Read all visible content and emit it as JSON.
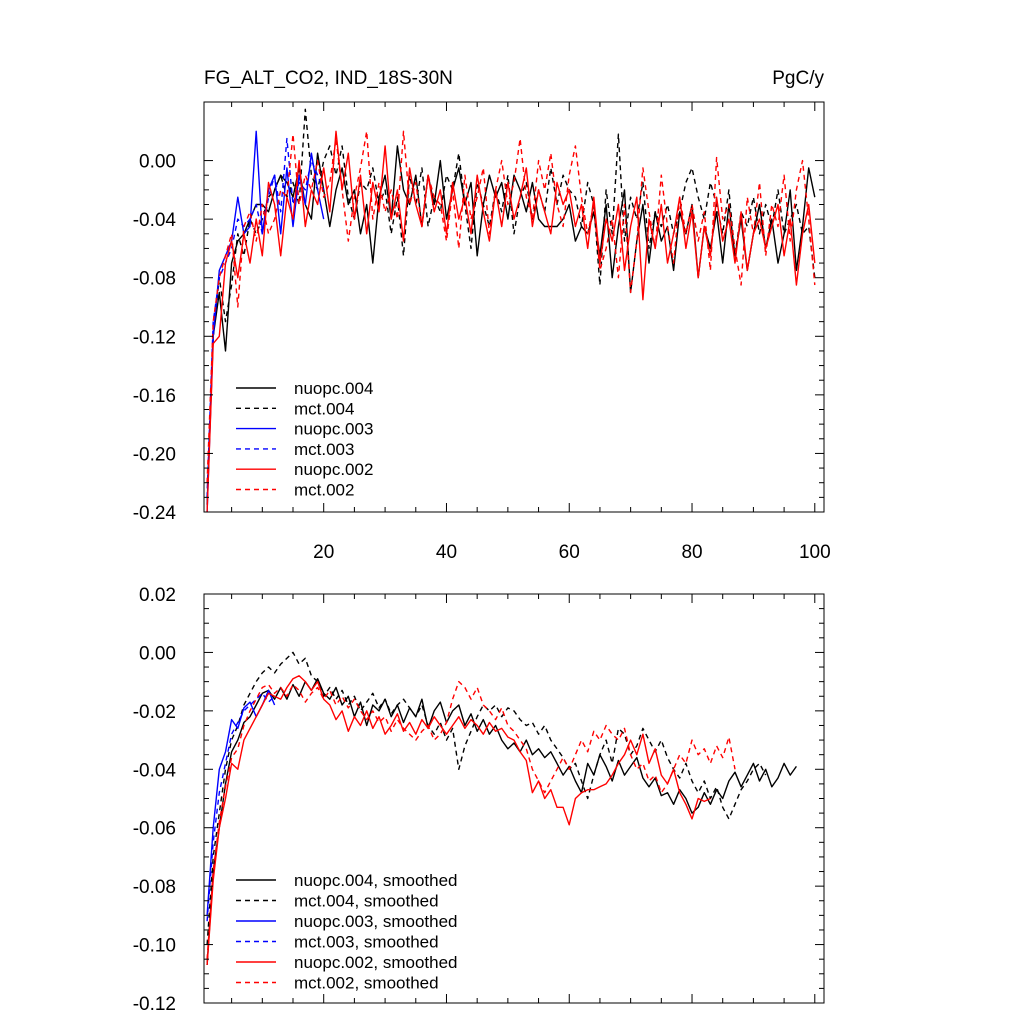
{
  "colors": {
    "black": "#000000",
    "blue": "#0000ff",
    "red": "#ff0000"
  },
  "chart_data": [
    {
      "type": "line",
      "title": "FG_ALT_CO2, IND_18S-30N",
      "units": "PgC/y",
      "xlabel": "",
      "ylabel": "",
      "xlim": [
        0.5,
        101.5
      ],
      "ylim": [
        -0.24,
        0.04
      ],
      "xticks": [
        20,
        40,
        60,
        80,
        100
      ],
      "yticks": [
        0.0,
        -0.04,
        -0.08,
        -0.12,
        -0.16,
        -0.2,
        -0.24
      ],
      "ytick_labels": [
        "0.00",
        "-0.04",
        "-0.08",
        "-0.12",
        "-0.16",
        "-0.20",
        "-0.24"
      ],
      "legend_position": "bottom-left",
      "series": [
        {
          "name": "nuopc.004",
          "color": "#000000",
          "dash": false,
          "values": [
            -0.235,
            -0.12,
            -0.09,
            -0.13,
            -0.07,
            -0.055,
            -0.05,
            -0.04,
            -0.03,
            -0.03,
            -0.035,
            -0.02,
            -0.01,
            -0.015,
            -0.025,
            -0.005,
            -0.03,
            -0.04,
            0.005,
            -0.02,
            -0.045,
            -0.02,
            -0.005,
            -0.03,
            -0.02,
            -0.05,
            -0.03,
            -0.07,
            -0.025,
            -0.01,
            -0.04,
            0.01,
            -0.02,
            -0.03,
            -0.01,
            -0.045,
            -0.01,
            -0.03,
            0.0,
            -0.04,
            -0.02,
            -0.005,
            -0.03,
            -0.015,
            -0.065,
            -0.03,
            -0.01,
            -0.025,
            -0.015,
            -0.04,
            -0.01,
            -0.02,
            -0.035,
            -0.015,
            -0.04,
            -0.045,
            -0.045,
            -0.045,
            -0.04,
            -0.03,
            -0.055,
            -0.045,
            -0.05,
            -0.035,
            -0.065,
            -0.03,
            -0.08,
            -0.045,
            -0.02,
            -0.09,
            -0.055,
            -0.03,
            -0.07,
            -0.035,
            -0.055,
            -0.045,
            -0.075,
            -0.035,
            -0.05,
            -0.03,
            -0.08,
            -0.045,
            -0.06,
            -0.035,
            -0.07,
            -0.03,
            -0.065,
            -0.04,
            -0.075,
            -0.05,
            -0.03,
            -0.06,
            -0.04,
            -0.07,
            -0.05,
            -0.02,
            -0.075,
            -0.045,
            -0.005,
            -0.025
          ]
        },
        {
          "name": "mct.004",
          "color": "#000000",
          "dash": true,
          "values": [
            -0.23,
            -0.12,
            -0.08,
            -0.11,
            -0.085,
            -0.05,
            -0.065,
            -0.04,
            -0.05,
            -0.04,
            -0.025,
            -0.02,
            -0.01,
            -0.025,
            -0.015,
            -0.03,
            0.035,
            -0.01,
            -0.02,
            0.0,
            0.01,
            -0.01,
            0.01,
            -0.025,
            -0.04,
            -0.015,
            -0.02,
            -0.005,
            -0.03,
            -0.02,
            -0.05,
            -0.025,
            -0.065,
            -0.01,
            -0.03,
            -0.005,
            -0.045,
            -0.025,
            -0.035,
            -0.01,
            -0.02,
            0.005,
            -0.03,
            -0.06,
            -0.015,
            -0.03,
            -0.045,
            -0.02,
            -0.035,
            -0.01,
            -0.05,
            -0.025,
            -0.015,
            -0.04,
            -0.02,
            -0.035,
            -0.005,
            -0.03,
            -0.01,
            -0.02,
            -0.025,
            -0.045,
            -0.015,
            -0.03,
            -0.085,
            -0.02,
            -0.05,
            0.018,
            -0.055,
            -0.025,
            -0.04,
            -0.015,
            -0.06,
            -0.035,
            -0.045,
            -0.03,
            -0.05,
            -0.035,
            -0.015,
            -0.005,
            -0.025,
            -0.04,
            -0.015,
            -0.03,
            -0.05,
            -0.02,
            -0.065,
            -0.035,
            -0.045,
            -0.025,
            -0.05,
            -0.03,
            -0.045,
            -0.02,
            -0.05,
            -0.04,
            -0.03,
            -0.05,
            -0.045,
            -0.08
          ]
        },
        {
          "name": "nuopc.003",
          "color": "#0000ff",
          "dash": false,
          "values": [
            -0.24,
            -0.12,
            -0.075,
            -0.065,
            -0.055,
            -0.025,
            -0.05,
            -0.045,
            0.02,
            -0.05,
            -0.02,
            -0.01,
            -0.05,
            -0.005,
            -0.045,
            -0.01,
            -0.03,
            0.005,
            -0.02,
            -0.04
          ]
        },
        {
          "name": "mct.003",
          "color": "#0000ff",
          "dash": true,
          "values": [
            -0.23,
            -0.11,
            -0.08,
            -0.07,
            -0.06,
            -0.04,
            -0.045,
            -0.04,
            -0.03,
            -0.05,
            -0.025,
            -0.01,
            -0.035,
            0.015,
            -0.03,
            -0.015,
            -0.02,
            0.0,
            -0.01,
            -0.02
          ]
        },
        {
          "name": "nuopc.002",
          "color": "#ff0000",
          "dash": false,
          "values": [
            -0.24,
            -0.125,
            -0.12,
            -0.07,
            -0.055,
            -0.08,
            -0.05,
            -0.07,
            -0.04,
            -0.065,
            -0.015,
            -0.03,
            -0.065,
            -0.025,
            -0.04,
            0.0,
            -0.045,
            -0.02,
            -0.03,
            -0.005,
            -0.035,
            0.02,
            -0.02,
            0.005,
            -0.04,
            -0.01,
            -0.05,
            -0.015,
            -0.035,
            0.01,
            -0.04,
            -0.02,
            -0.055,
            -0.005,
            -0.03,
            -0.045,
            -0.01,
            -0.035,
            -0.02,
            -0.05,
            -0.015,
            -0.04,
            -0.025,
            -0.05,
            -0.01,
            -0.035,
            -0.055,
            -0.02,
            -0.045,
            -0.015,
            -0.04,
            -0.025,
            -0.005,
            -0.045,
            -0.02,
            -0.035,
            -0.05,
            -0.015,
            -0.03,
            -0.02,
            -0.045,
            -0.03,
            -0.06,
            -0.025,
            -0.07,
            -0.04,
            -0.055,
            -0.03,
            -0.075,
            -0.045,
            -0.025,
            -0.095,
            -0.04,
            -0.06,
            -0.03,
            -0.07,
            -0.05,
            -0.025,
            -0.06,
            -0.035,
            -0.08,
            -0.045,
            -0.065,
            -0.025,
            -0.055,
            -0.04,
            -0.07,
            -0.035,
            -0.075,
            -0.05,
            -0.04,
            -0.06,
            -0.045,
            -0.03,
            -0.065,
            -0.04,
            -0.085,
            -0.05,
            -0.03,
            -0.07
          ]
        },
        {
          "name": "mct.002",
          "color": "#ff0000",
          "dash": true,
          "values": [
            -0.22,
            -0.11,
            -0.08,
            -0.065,
            -0.05,
            -0.1,
            -0.045,
            -0.035,
            -0.055,
            -0.03,
            -0.05,
            -0.04,
            -0.02,
            -0.025,
            0.018,
            -0.03,
            -0.01,
            -0.02,
            0.0,
            -0.025,
            -0.015,
            0.015,
            -0.02,
            -0.055,
            -0.025,
            -0.005,
            0.02,
            -0.04,
            -0.015,
            -0.035,
            -0.02,
            -0.04,
            0.02,
            -0.03,
            -0.015,
            -0.045,
            -0.01,
            -0.025,
            -0.03,
            -0.055,
            -0.02,
            -0.06,
            -0.01,
            -0.04,
            -0.025,
            -0.005,
            -0.05,
            -0.02,
            0.0,
            -0.03,
            -0.015,
            0.015,
            -0.025,
            -0.04,
            0.0,
            -0.02,
            0.005,
            -0.03,
            -0.045,
            -0.01,
            0.01,
            -0.025,
            -0.05,
            -0.03,
            -0.075,
            -0.06,
            -0.04,
            -0.08,
            -0.03,
            -0.09,
            -0.055,
            -0.005,
            -0.035,
            -0.06,
            -0.01,
            -0.045,
            -0.07,
            -0.025,
            -0.05,
            -0.03,
            -0.055,
            -0.035,
            -0.075,
            0.002,
            -0.04,
            -0.03,
            -0.06,
            -0.085,
            -0.025,
            -0.05,
            -0.015,
            -0.065,
            -0.03,
            -0.045,
            -0.01,
            -0.055,
            -0.02,
            0.0,
            -0.04,
            -0.085
          ]
        }
      ],
      "legend": [
        "nuopc.004",
        "mct.004",
        "nuopc.003",
        "mct.003",
        "nuopc.002",
        "mct.002"
      ]
    },
    {
      "type": "line",
      "title": "",
      "xlabel": "",
      "ylabel": "",
      "xlim": [
        0.5,
        101.5
      ],
      "ylim": [
        -0.12,
        0.02
      ],
      "xticks": [
        20,
        40,
        60,
        80,
        100
      ],
      "yticks": [
        0.02,
        0.0,
        -0.02,
        -0.04,
        -0.06,
        -0.08,
        -0.1,
        -0.12
      ],
      "ytick_labels": [
        "0.02",
        "0.00",
        "-0.02",
        "-0.04",
        "-0.06",
        "-0.08",
        "-0.10",
        "-0.12"
      ],
      "legend_position": "bottom-left",
      "series": [
        {
          "name": "nuopc.004, smoothed",
          "color": "#000000",
          "dash": false,
          "values": [
            -0.107,
            -0.075,
            -0.06,
            -0.045,
            -0.034,
            -0.03,
            -0.024,
            -0.022,
            -0.018,
            -0.014,
            -0.013,
            -0.016,
            -0.012,
            -0.016,
            -0.011,
            -0.015,
            -0.01,
            -0.013,
            -0.009,
            -0.014,
            -0.016,
            -0.012,
            -0.018,
            -0.015,
            -0.022,
            -0.017,
            -0.025,
            -0.018,
            -0.02,
            -0.016,
            -0.022,
            -0.018,
            -0.024,
            -0.019,
            -0.022,
            -0.016,
            -0.026,
            -0.02,
            -0.017,
            -0.024,
            -0.02,
            -0.018,
            -0.025,
            -0.021,
            -0.027,
            -0.023,
            -0.028,
            -0.025,
            -0.03,
            -0.033,
            -0.031,
            -0.034,
            -0.03,
            -0.035,
            -0.033,
            -0.036,
            -0.034,
            -0.038,
            -0.042,
            -0.039,
            -0.044,
            -0.048,
            -0.038,
            -0.042,
            -0.035,
            -0.039,
            -0.044,
            -0.037,
            -0.042,
            -0.039,
            -0.036,
            -0.043,
            -0.046,
            -0.043,
            -0.049,
            -0.048,
            -0.052,
            -0.047,
            -0.05,
            -0.055,
            -0.053,
            -0.048,
            -0.052,
            -0.047,
            -0.05,
            -0.044,
            -0.041,
            -0.046,
            -0.042,
            -0.038,
            -0.044,
            -0.04,
            -0.046,
            -0.043,
            -0.038,
            -0.042,
            -0.039
          ]
        },
        {
          "name": "mct.004, smoothed",
          "color": "#000000",
          "dash": true,
          "values": [
            -0.1,
            -0.07,
            -0.055,
            -0.04,
            -0.03,
            -0.025,
            -0.018,
            -0.014,
            -0.01,
            -0.007,
            -0.005,
            -0.007,
            -0.004,
            -0.002,
            0.0,
            -0.004,
            -0.002,
            -0.008,
            -0.01,
            -0.015,
            -0.012,
            -0.016,
            -0.013,
            -0.018,
            -0.015,
            -0.02,
            -0.017,
            -0.014,
            -0.019,
            -0.016,
            -0.021,
            -0.018,
            -0.016,
            -0.019,
            -0.022,
            -0.018,
            -0.025,
            -0.028,
            -0.024,
            -0.03,
            -0.026,
            -0.04,
            -0.032,
            -0.027,
            -0.022,
            -0.018,
            -0.02,
            -0.018,
            -0.022,
            -0.019,
            -0.02,
            -0.023,
            -0.025,
            -0.024,
            -0.028,
            -0.025,
            -0.03,
            -0.033,
            -0.036,
            -0.04,
            -0.038,
            -0.044,
            -0.05,
            -0.042,
            -0.035,
            -0.03,
            -0.038,
            -0.026,
            -0.028,
            -0.035,
            -0.032,
            -0.026,
            -0.03,
            -0.034,
            -0.03,
            -0.036,
            -0.04,
            -0.043,
            -0.038,
            -0.044,
            -0.048,
            -0.044,
            -0.05,
            -0.046,
            -0.053,
            -0.057,
            -0.052,
            -0.047,
            -0.044,
            -0.04,
            -0.038,
            -0.042
          ]
        },
        {
          "name": "nuopc.003, smoothed",
          "color": "#0000ff",
          "dash": false,
          "values": [
            -0.09,
            -0.06,
            -0.04,
            -0.034,
            -0.023,
            -0.026,
            -0.019,
            -0.017,
            -0.022,
            -0.018,
            -0.013,
            -0.018
          ]
        },
        {
          "name": "mct.003, smoothed",
          "color": "#0000ff",
          "dash": true,
          "values": [
            -0.092,
            -0.065,
            -0.048,
            -0.038,
            -0.028,
            -0.024,
            -0.02,
            -0.018,
            -0.016,
            -0.014,
            -0.017,
            -0.015
          ]
        },
        {
          "name": "nuopc.002, smoothed",
          "color": "#ff0000",
          "dash": false,
          "values": [
            -0.107,
            -0.078,
            -0.06,
            -0.05,
            -0.038,
            -0.04,
            -0.03,
            -0.026,
            -0.022,
            -0.018,
            -0.014,
            -0.015,
            -0.016,
            -0.012,
            -0.009,
            -0.008,
            -0.01,
            -0.013,
            -0.01,
            -0.016,
            -0.018,
            -0.023,
            -0.02,
            -0.027,
            -0.022,
            -0.025,
            -0.02,
            -0.026,
            -0.022,
            -0.028,
            -0.025,
            -0.021,
            -0.027,
            -0.024,
            -0.028,
            -0.023,
            -0.026,
            -0.022,
            -0.025,
            -0.028,
            -0.025,
            -0.022,
            -0.026,
            -0.023,
            -0.025,
            -0.028,
            -0.024,
            -0.027,
            -0.026,
            -0.029,
            -0.03,
            -0.034,
            -0.037,
            -0.048,
            -0.044,
            -0.05,
            -0.047,
            -0.053,
            -0.053,
            -0.059,
            -0.05,
            -0.048,
            -0.047,
            -0.047,
            -0.046,
            -0.045,
            -0.042,
            -0.038,
            -0.035,
            -0.03,
            -0.035,
            -0.028,
            -0.038,
            -0.033,
            -0.042,
            -0.045,
            -0.04,
            -0.048,
            -0.052,
            -0.057,
            -0.05,
            -0.051,
            -0.05
          ]
        },
        {
          "name": "mct.002, smoothed",
          "color": "#ff0000",
          "dash": true,
          "values": [
            -0.105,
            -0.075,
            -0.058,
            -0.046,
            -0.036,
            -0.033,
            -0.025,
            -0.02,
            -0.016,
            -0.012,
            -0.011,
            -0.014,
            -0.012,
            -0.015,
            -0.011,
            -0.013,
            -0.017,
            -0.014,
            -0.012,
            -0.016,
            -0.013,
            -0.018,
            -0.015,
            -0.019,
            -0.016,
            -0.02,
            -0.023,
            -0.02,
            -0.024,
            -0.022,
            -0.027,
            -0.023,
            -0.026,
            -0.028,
            -0.03,
            -0.027,
            -0.025,
            -0.03,
            -0.028,
            -0.024,
            -0.016,
            -0.01,
            -0.012,
            -0.016,
            -0.012,
            -0.018,
            -0.02,
            -0.023,
            -0.019,
            -0.025,
            -0.027,
            -0.03,
            -0.033,
            -0.04,
            -0.044,
            -0.048,
            -0.044,
            -0.04,
            -0.036,
            -0.04,
            -0.035,
            -0.03,
            -0.034,
            -0.027,
            -0.03,
            -0.025,
            -0.028,
            -0.03,
            -0.026,
            -0.035,
            -0.04,
            -0.038,
            -0.044,
            -0.042,
            -0.048,
            -0.045,
            -0.04,
            -0.035,
            -0.038,
            -0.03,
            -0.035,
            -0.033,
            -0.038,
            -0.032,
            -0.036,
            -0.029,
            -0.04
          ]
        }
      ],
      "legend": [
        "nuopc.004, smoothed",
        "mct.004, smoothed",
        "nuopc.003, smoothed",
        "mct.003, smoothed",
        "nuopc.002, smoothed",
        "mct.002, smoothed"
      ]
    }
  ]
}
